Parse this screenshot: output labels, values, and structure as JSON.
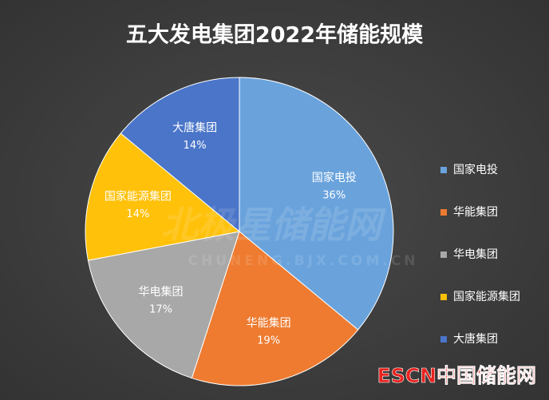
{
  "chart_data": {
    "type": "pie",
    "title": "五大发电集团2022年储能规模",
    "categories": [
      "国家电投",
      "华能集团",
      "华电集团",
      "国家能源集团",
      "大唐集团"
    ],
    "values": [
      36,
      19,
      17,
      14,
      14
    ],
    "value_labels": [
      "36%",
      "19%",
      "17%",
      "14%",
      "14%"
    ],
    "colors": [
      "#6aa3dc",
      "#ee7b30",
      "#a8a8a8",
      "#ffc10a",
      "#4a75c8"
    ],
    "legend": "right",
    "watermark": "北极星储能网",
    "watermark_url": "CHUNENG.BJX.COM.CN",
    "logo": "ESCN中国储能网"
  }
}
